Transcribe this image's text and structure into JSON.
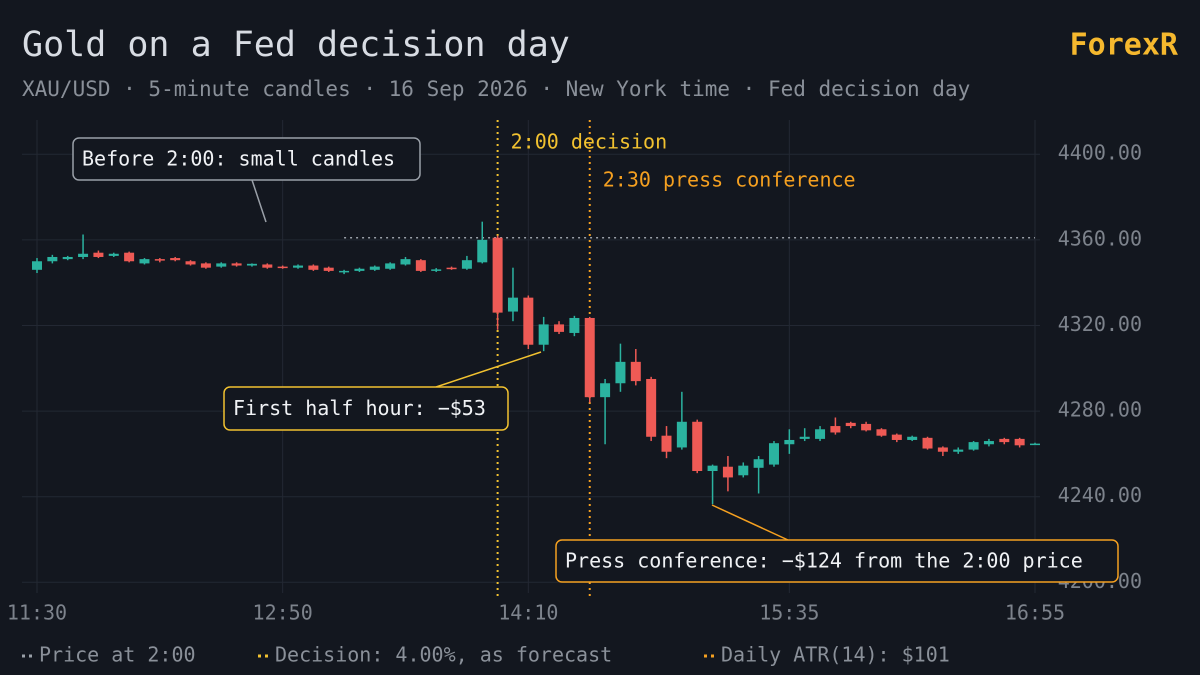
{
  "brand": "ForexR",
  "chart_data": {
    "type": "candlestick",
    "title": "Gold on a Fed decision day",
    "subtitle": "XAU/USD · 5-minute candles · 16 Sep 2026 · New York time · Fed decision day",
    "categories": [
      "11:30",
      null,
      null,
      null,
      null,
      null,
      null,
      null,
      null,
      null,
      null,
      null,
      null,
      null,
      null,
      null,
      "12:50",
      null,
      null,
      null,
      null,
      null,
      null,
      null,
      null,
      null,
      null,
      null,
      null,
      null,
      null,
      null,
      "14:10",
      null,
      null,
      null,
      null,
      null,
      null,
      null,
      null,
      null,
      null,
      null,
      null,
      null,
      null,
      null,
      null,
      "15:35",
      null,
      null,
      null,
      null,
      null,
      null,
      null,
      null,
      null,
      null,
      null,
      null,
      null,
      null,
      null,
      "16:55"
    ],
    "open": [
      4346,
      4350,
      4351,
      4352,
      4354,
      4352.5,
      4354,
      4349,
      4351,
      4351.5,
      4350,
      4349,
      4347.5,
      4349,
      4348,
      4348.5,
      4347.5,
      4347,
      4348,
      4347,
      4344.8,
      4345.5,
      4346,
      4346.5,
      4348.5,
      4350.5,
      4345.5,
      4347,
      4346.5,
      4349.5,
      4361,
      4326.5,
      4333,
      4311,
      4320.5,
      4316.5,
      4323.5,
      4286.5,
      4293,
      4303,
      4295,
      4268.5,
      4263,
      4275,
      4252,
      4254,
      4250,
      4253.5,
      4255,
      4264.5,
      4267,
      4267,
      4273,
      4274.5,
      4274,
      4271.5,
      4269,
      4266.5,
      4267.5,
      4263,
      4261,
      4262,
      4264.5,
      4267,
      4267,
      4264.5
    ],
    "high": [
      4351.5,
      4353,
      4352.5,
      4362.5,
      4355,
      4354,
      4354.5,
      4351.5,
      4351.5,
      4352,
      4350.5,
      4349.5,
      4349.5,
      4349.5,
      4349,
      4349,
      4348,
      4348.5,
      4348.5,
      4347.5,
      4346,
      4347,
      4348,
      4349.5,
      4352,
      4351,
      4346.8,
      4347.5,
      4352.5,
      4368.5,
      4362,
      4347,
      4334,
      4324,
      4322,
      4324.5,
      4324,
      4295,
      4311.5,
      4309,
      4296,
      4273,
      4289,
      4276,
      4255,
      4259,
      4256,
      4259,
      4266,
      4271.5,
      4272,
      4273,
      4277,
      4275,
      4275,
      4272,
      4269.5,
      4268.5,
      4268,
      4263.5,
      4263,
      4266,
      4267,
      4267.5,
      4267.5,
      4265.2
    ],
    "low": [
      4344.5,
      4349,
      4350.5,
      4351,
      4351.5,
      4352,
      4349.5,
      4348.5,
      4349.5,
      4350,
      4348,
      4346.5,
      4347,
      4347.5,
      4347.5,
      4346.5,
      4346.5,
      4346.5,
      4345.5,
      4345,
      4344,
      4345,
      4345.5,
      4346,
      4348,
      4345,
      4345,
      4346,
      4346,
      4349,
      4318,
      4322,
      4309,
      4308,
      4316,
      4315,
      4284,
      4264.5,
      4289,
      4292,
      4266,
      4258,
      4262,
      4251,
      4236.5,
      4242.5,
      4249,
      4241.5,
      4254,
      4260,
      4266,
      4266,
      4269,
      4272,
      4270.5,
      4268,
      4265.5,
      4266,
      4262,
      4259,
      4260,
      4261.5,
      4263.5,
      4264.5,
      4263,
      4264.3
    ],
    "close": [
      4350,
      4352,
      4352,
      4353.5,
      4352,
      4353.5,
      4350,
      4351,
      4350.5,
      4350.5,
      4348.5,
      4347,
      4349,
      4348,
      4348.8,
      4347,
      4347,
      4348,
      4346,
      4345.5,
      4345.5,
      4346.5,
      4347.5,
      4349,
      4351,
      4345.5,
      4346.2,
      4346.5,
      4350.5,
      4360,
      4326,
      4333,
      4311,
      4320.5,
      4317,
      4323.5,
      4286.5,
      4293,
      4303,
      4294,
      4268,
      4261,
      4275,
      4252,
      4254.5,
      4249,
      4254.5,
      4257.5,
      4265,
      4266.5,
      4268,
      4271.5,
      4270,
      4273,
      4271,
      4268.5,
      4266.5,
      4268,
      4262.5,
      4261,
      4262,
      4265.5,
      4266,
      4265.5,
      4264,
      4264.8
    ],
    "up_color": "#2bb3a0",
    "down_color": "#ee5a55",
    "ylim": [
      4195,
      4416
    ],
    "yticks": [
      {
        "value": 4200,
        "label": "4200.00"
      },
      {
        "value": 4240,
        "label": "4240.00"
      },
      {
        "value": 4280,
        "label": "4280.00"
      },
      {
        "value": 4320,
        "label": "4320.00"
      },
      {
        "value": 4360,
        "label": "4360.00"
      },
      {
        "value": 4400,
        "label": "4400.00"
      }
    ],
    "grid": true,
    "reference_line": {
      "value": 4361,
      "label": "Price at 2:00",
      "color": "#9aa0a8"
    },
    "events": [
      {
        "label": "2:00 decision",
        "category_index": 30,
        "color": "#f2c230"
      },
      {
        "label": "2:30 press conference",
        "category_index": 36,
        "color": "#f5a020"
      }
    ],
    "legend_notes": [
      {
        "label": "Decision: 4.00%, as forecast",
        "color": "#f2c230"
      },
      {
        "label": "Daily ATR(14): $101",
        "color": "#f5a020"
      }
    ],
    "callouts": [
      {
        "text": "Before 2:00: small candles",
        "color": "#9aa0a8"
      },
      {
        "text": "First half hour: −$53",
        "color": "#f2c230"
      },
      {
        "text": "Press conference: −$124 from the 2:00 price",
        "color": "#f5a020"
      }
    ]
  }
}
